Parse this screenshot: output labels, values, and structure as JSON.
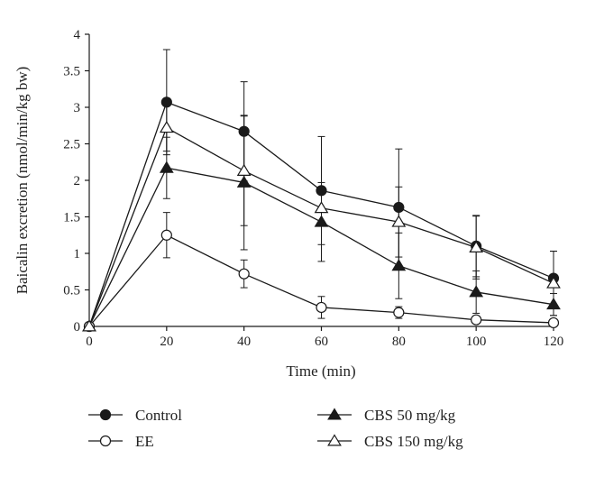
{
  "chart_data": {
    "type": "line",
    "title": "",
    "xlabel": "Time (min)",
    "ylabel": "Baicalin excretion (nmol/min/kg bw)",
    "xlim": [
      0,
      120
    ],
    "ylim": [
      0,
      4
    ],
    "x_ticks": [
      "0",
      "20",
      "40",
      "60",
      "80",
      "100",
      "120"
    ],
    "y_ticks": [
      "0",
      "0.5",
      "1",
      "1.5",
      "2",
      "2.5",
      "3",
      "3.5",
      "4"
    ],
    "grid": false,
    "legend_placement": "bottom",
    "x": [
      0,
      20,
      40,
      60,
      80,
      100,
      120
    ],
    "series": [
      {
        "name": "Control",
        "marker": "circle",
        "fill": "filled",
        "values": [
          0,
          3.07,
          2.67,
          1.86,
          1.63,
          1.1,
          0.66
        ],
        "errors": [
          0,
          0.72,
          0.68,
          0.74,
          0.8,
          0.42,
          0.37
        ]
      },
      {
        "name": "EE",
        "marker": "circle",
        "fill": "open",
        "values": [
          0,
          1.25,
          0.72,
          0.26,
          0.19,
          0.09,
          0.05
        ],
        "errors": [
          0,
          0.31,
          0.19,
          0.15,
          0.08,
          0.05,
          0.04
        ]
      },
      {
        "name": "CBS 50 mg/kg",
        "marker": "triangle",
        "fill": "filled",
        "values": [
          0,
          2.17,
          1.97,
          1.43,
          0.83,
          0.47,
          0.3
        ],
        "errors": [
          0,
          0.42,
          0.92,
          0.54,
          0.45,
          0.29,
          0.15
        ]
      },
      {
        "name": "CBS 150 mg/kg",
        "marker": "triangle",
        "fill": "open",
        "values": [
          0,
          2.72,
          2.13,
          1.62,
          1.43,
          1.08,
          0.59
        ],
        "errors": [
          0,
          0.32,
          0.75,
          0.2,
          0.48,
          0.43,
          0.44
        ]
      }
    ]
  }
}
